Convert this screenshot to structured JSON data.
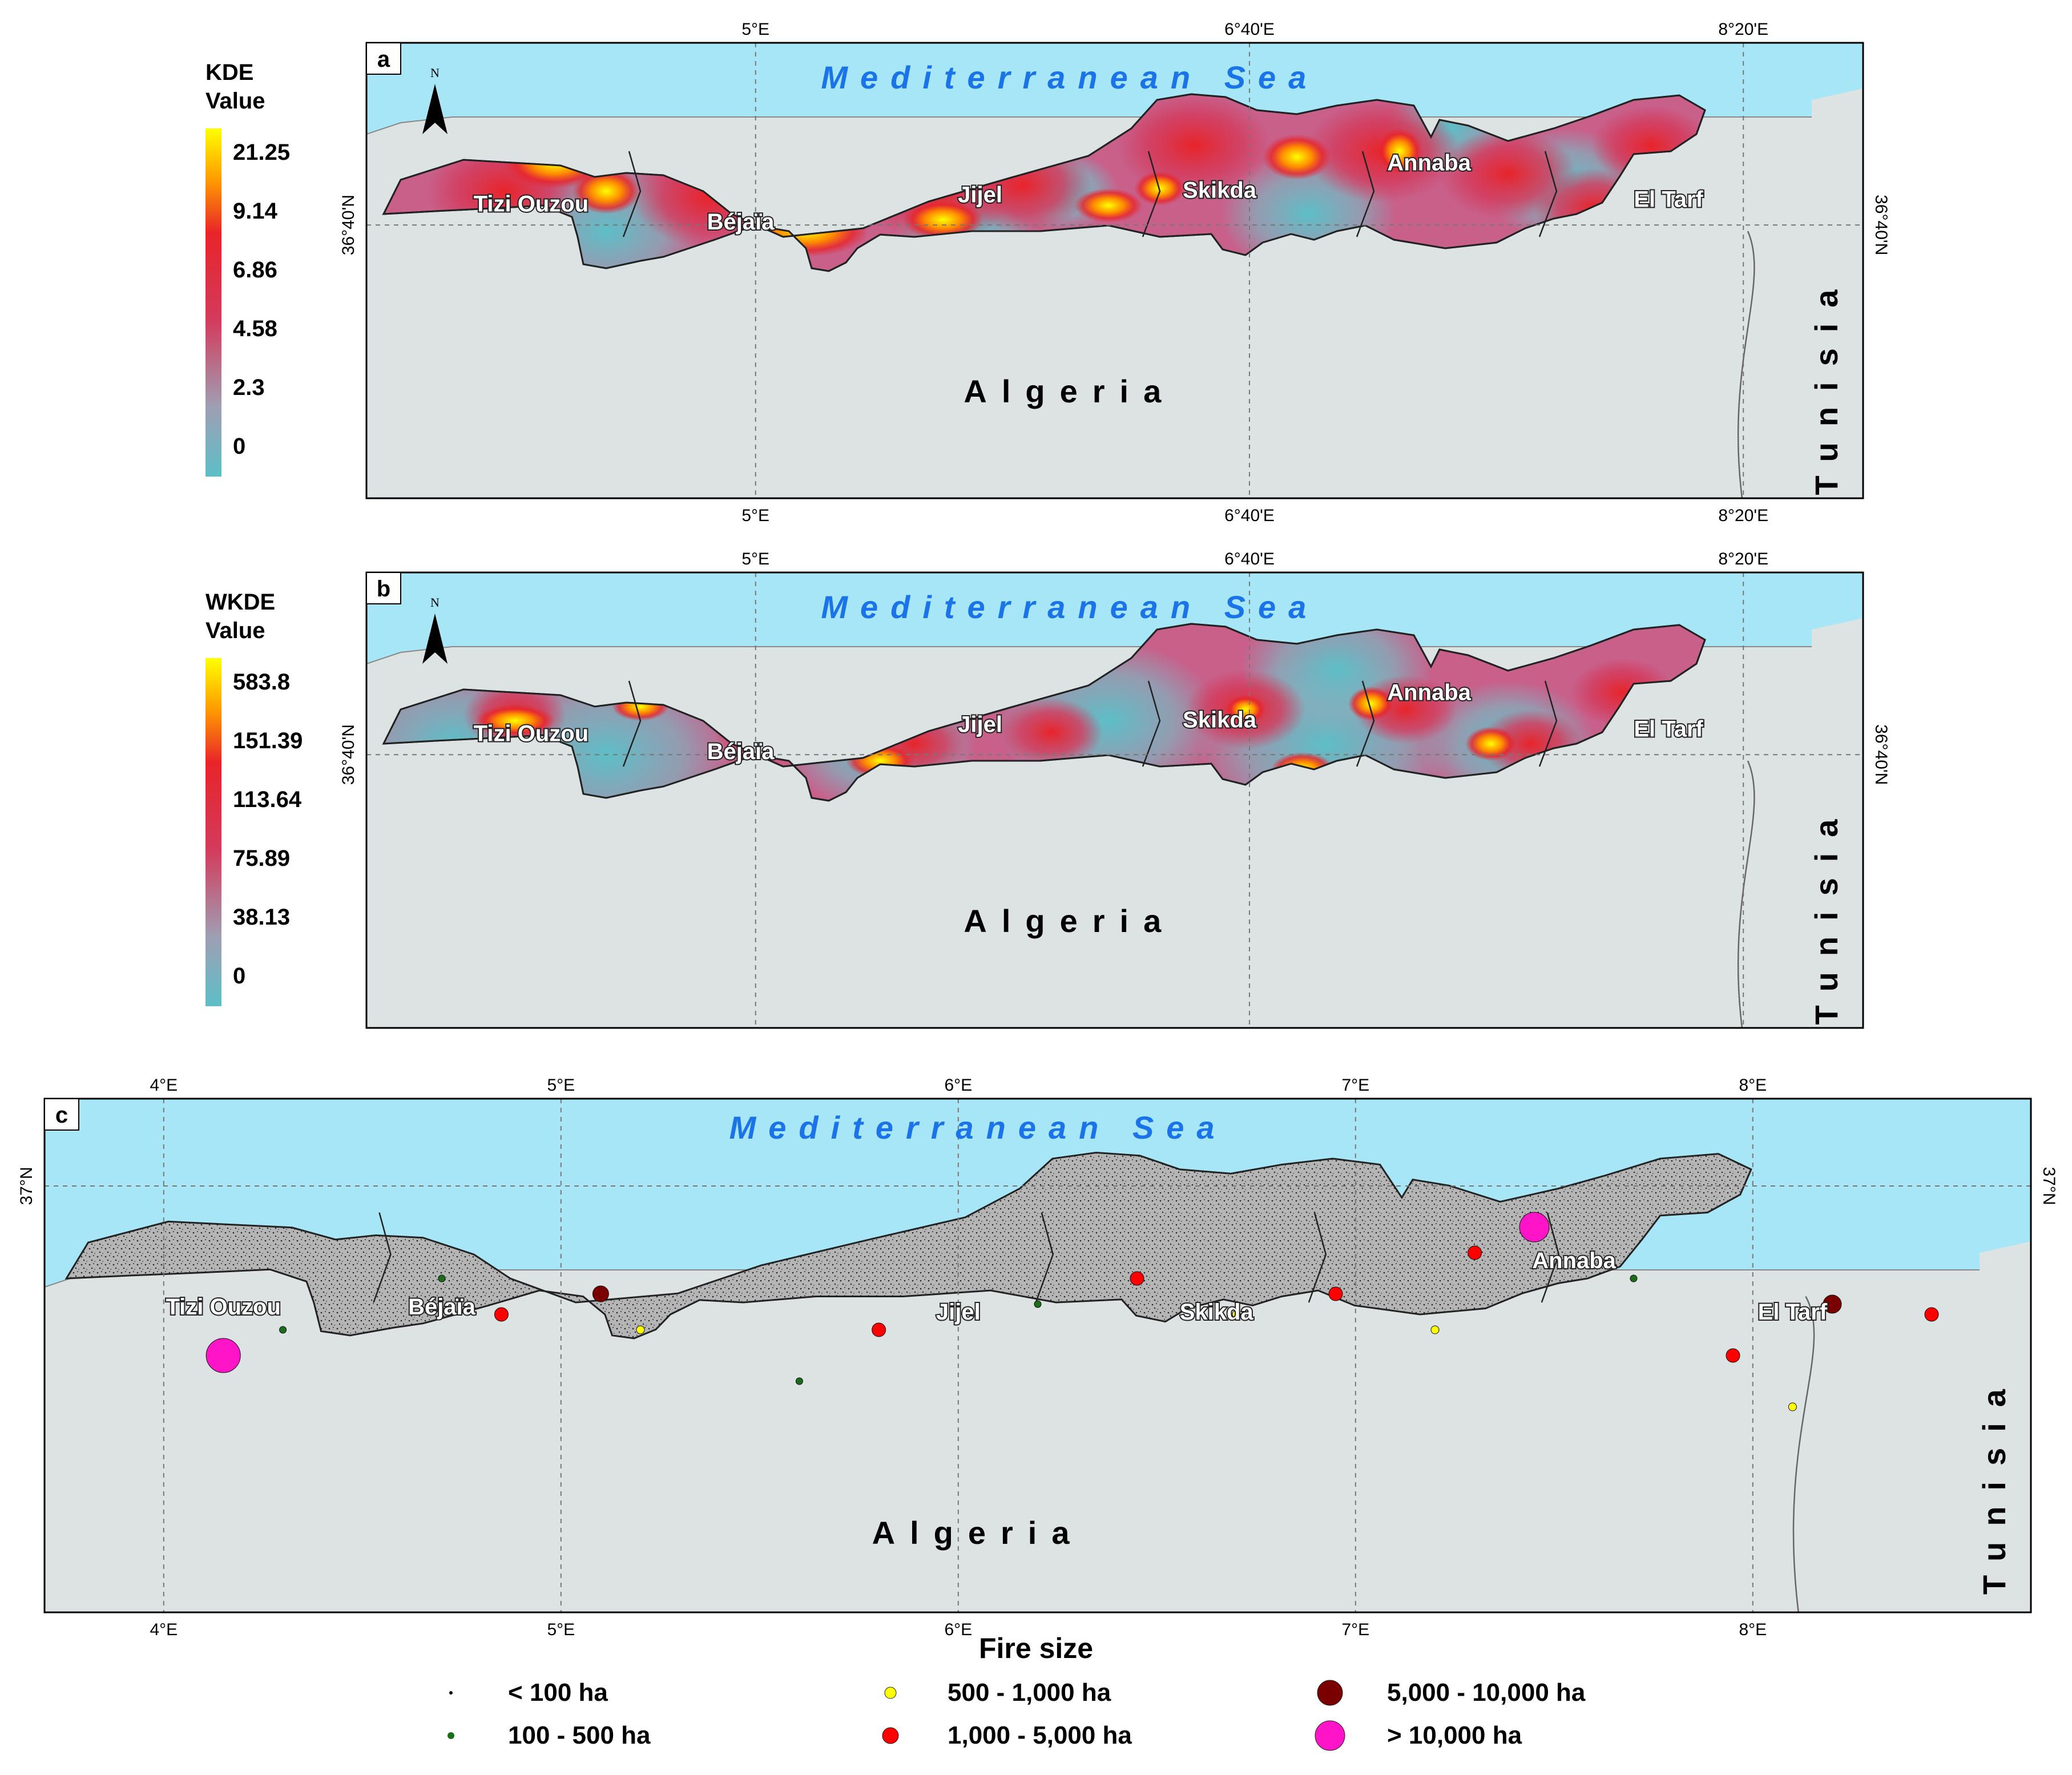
{
  "panels": [
    {
      "id": "a",
      "letter": "a",
      "legend_title": [
        "KDE",
        "Value"
      ],
      "legend_ticks": [
        "21.25",
        "9.14",
        "6.86",
        "4.58",
        "2.3",
        "0"
      ],
      "top_ticks": [
        "5°E",
        "6°40'E",
        "8°20'E"
      ],
      "bottom_ticks": [
        "5°E",
        "6°40'E",
        "8°20'E"
      ],
      "lat_label": "36°40'N",
      "sea": "Mediterranean Sea",
      "country": "Algeria",
      "neighbor": "Tunisia",
      "provinces": [
        "Tizi Ouzou",
        "Béjaïa",
        "Jijel",
        "Skikda",
        "Annaba",
        "El Tarf"
      ],
      "north_label": "N"
    },
    {
      "id": "b",
      "letter": "b",
      "legend_title": [
        "WKDE",
        "Value"
      ],
      "legend_ticks": [
        "583.8",
        "151.39",
        "113.64",
        "75.89",
        "38.13",
        "0"
      ],
      "top_ticks": [
        "5°E",
        "6°40'E",
        "8°20'E"
      ],
      "bottom_ticks": [
        "5°E",
        "6°40'E",
        "8°20'E"
      ],
      "lat_label": "36°40'N",
      "sea": "Mediterranean Sea",
      "country": "Algeria",
      "neighbor": "Tunisia",
      "provinces": [
        "Tizi Ouzou",
        "Béjaïa",
        "Jijel",
        "Skikda",
        "Annaba",
        "El Tarf"
      ],
      "north_label": "N"
    },
    {
      "id": "c",
      "letter": "c",
      "top_ticks": [
        "4°E",
        "5°E",
        "6°E",
        "7°E",
        "8°E"
      ],
      "bottom_ticks": [
        "4°E",
        "5°E",
        "6°E",
        "7°E",
        "8°E"
      ],
      "lat_label": "37°N",
      "sea": "Mediterranean Sea",
      "country": "Algeria",
      "neighbor": "Tunisia",
      "provinces": [
        "Tizi Ouzou",
        "Béjaïa",
        "Jijel",
        "Skikda",
        "Annaba",
        "El Tarf"
      ]
    }
  ],
  "fire_legend": {
    "title": "Fire size",
    "items": [
      {
        "label": "< 100 ha",
        "color": "#000000"
      },
      {
        "label": "100 - 500 ha",
        "color": "#1a6e1a"
      },
      {
        "label": "500 - 1,000 ha",
        "color": "#ffff00"
      },
      {
        "label": "1,000 - 5,000 ha",
        "color": "#ff0000"
      },
      {
        "label": "5,000 - 10,000 ha",
        "color": "#7a0000"
      },
      {
        "label": "> 10,000 ha",
        "color": "#ff14c8"
      }
    ]
  },
  "colors": {
    "sea": "#a6e6f7",
    "land": "#dde3e3",
    "region_c": "#b5b5b5",
    "sea_text": "#1a73e8",
    "ramp": [
      "#5cbfc8",
      "#9f9fb3",
      "#d43a5c",
      "#e8242a",
      "#ff9a00",
      "#ffff00"
    ]
  }
}
